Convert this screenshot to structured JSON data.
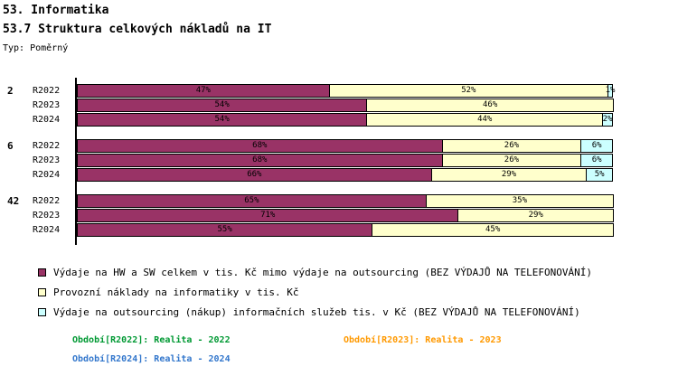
{
  "header": {
    "title1": "53. Informatika",
    "title2": "53.7 Struktura celkových nákladů na IT",
    "type_label": "Typ: Poměrný"
  },
  "chart_data": {
    "type": "bar",
    "orientation": "horizontal",
    "stacked": true,
    "unit": "%",
    "xlim": [
      0,
      100
    ],
    "grid": false,
    "legend_position": "bottom",
    "series": [
      {
        "name": "Výdaje na HW a SW celkem v tis. Kč mimo výdaje na outsourcing (BEZ VÝDAJŮ NA TELEFONOVÁNÍ)",
        "color": "#993366"
      },
      {
        "name": "Provozní náklady na informatiky v tis. Kč",
        "color": "#FFFFCC"
      },
      {
        "name": "Výdaje na outsourcing (nákup) informačních služeb tis. v Kč (BEZ VÝDAJŮ NA TELEFONOVÁNÍ)",
        "color": "#CCFFFF"
      }
    ],
    "groups": [
      {
        "label": "2",
        "rows": [
          {
            "label": "R2022",
            "values": [
              47,
              52,
              1
            ]
          },
          {
            "label": "R2023",
            "values": [
              54,
              46,
              0
            ]
          },
          {
            "label": "R2024",
            "values": [
              54,
              44,
              2
            ]
          }
        ]
      },
      {
        "label": "6",
        "rows": [
          {
            "label": "R2022",
            "values": [
              68,
              26,
              6
            ]
          },
          {
            "label": "R2023",
            "values": [
              68,
              26,
              6
            ]
          },
          {
            "label": "R2024",
            "values": [
              66,
              29,
              5
            ]
          }
        ]
      },
      {
        "label": "42",
        "rows": [
          {
            "label": "R2022",
            "values": [
              65,
              35,
              0
            ]
          },
          {
            "label": "R2023",
            "values": [
              71,
              29,
              0
            ]
          },
          {
            "label": "R2024",
            "values": [
              55,
              45,
              0
            ]
          }
        ]
      }
    ]
  },
  "periods": [
    {
      "text": "Období[R2022]: Realita - 2022",
      "color": "#009933"
    },
    {
      "text": "Období[R2023]: Realita - 2023",
      "color": "#FF9900"
    },
    {
      "text": "Období[R2024]: Realita - 2024",
      "color": "#3377CC"
    }
  ]
}
